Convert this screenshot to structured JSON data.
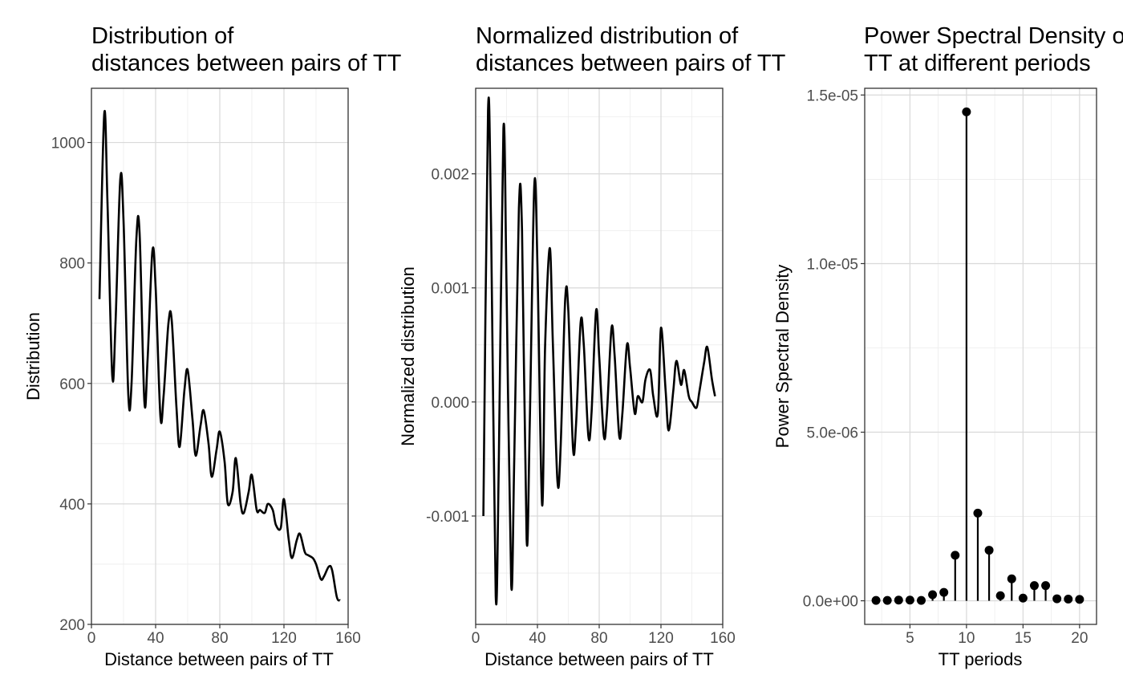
{
  "chart_data": [
    {
      "type": "line",
      "title_lines": [
        "Distribution of",
        "distances between pairs of TT"
      ],
      "xlabel": "Distance between pairs of TT",
      "ylabel": "Distribution",
      "xlim": [
        0,
        160
      ],
      "ylim": [
        200,
        1090
      ],
      "xticks": [
        0,
        40,
        80,
        120,
        160
      ],
      "xtick_labels": [
        "0",
        "40",
        "80",
        "120",
        "160"
      ],
      "yticks": [
        200,
        400,
        600,
        800,
        1000
      ],
      "ytick_labels": [
        "200",
        "400",
        "600",
        "800",
        "1000"
      ],
      "grid": true,
      "line_color": "#000000",
      "x": [
        5,
        8,
        10,
        13,
        15,
        18,
        20,
        23,
        25,
        28,
        30,
        33,
        35,
        38,
        40,
        43,
        45,
        48,
        50,
        53,
        55,
        58,
        60,
        63,
        65,
        68,
        70,
        73,
        75,
        78,
        80,
        83,
        85,
        88,
        90,
        93,
        95,
        98,
        100,
        103,
        105,
        108,
        110,
        113,
        115,
        118,
        120,
        123,
        125,
        128,
        130,
        133,
        135,
        138,
        140,
        143,
        145,
        148,
        150,
        153,
        155
      ],
      "y": [
        740,
        1048,
        900,
        612,
        700,
        940,
        870,
        580,
        600,
        840,
        850,
        570,
        640,
        820,
        760,
        545,
        580,
        700,
        706,
        560,
        495,
        590,
        622,
        540,
        480,
        530,
        555,
        500,
        445,
        490,
        520,
        470,
        400,
        420,
        476,
        400,
        385,
        420,
        448,
        390,
        390,
        385,
        400,
        390,
        365,
        360,
        408,
        340,
        310,
        340,
        350,
        320,
        315,
        310,
        300,
        275,
        280,
        296,
        290,
        245,
        240
      ]
    },
    {
      "type": "line",
      "title_lines": [
        "Normalized distribution of",
        "distances between pairs of TT"
      ],
      "xlabel": "Distance between pairs of TT",
      "ylabel": "Normalized distribution",
      "xlim": [
        0,
        160
      ],
      "ylim": [
        -0.00195,
        0.00275
      ],
      "xticks": [
        0,
        40,
        80,
        120,
        160
      ],
      "xtick_labels": [
        "0",
        "40",
        "80",
        "120",
        "160"
      ],
      "yticks": [
        -0.001,
        0.0,
        0.001,
        0.002
      ],
      "ytick_labels": [
        "-0.001",
        "0.000",
        "0.001",
        "0.002"
      ],
      "grid": true,
      "line_color": "#000000",
      "x": [
        5,
        8,
        10,
        13,
        15,
        18,
        20,
        23,
        25,
        28,
        30,
        33,
        35,
        38,
        40,
        43,
        45,
        48,
        50,
        53,
        55,
        58,
        60,
        63,
        65,
        68,
        70,
        73,
        75,
        78,
        80,
        83,
        85,
        88,
        90,
        93,
        95,
        98,
        100,
        103,
        105,
        108,
        110,
        113,
        115,
        118,
        120,
        123,
        125,
        128,
        130,
        133,
        135,
        138,
        140,
        143,
        145,
        148,
        150,
        153,
        155
      ],
      "y": [
        -0.001,
        0.00255,
        0.0015,
        -0.0017,
        -0.0005,
        0.0024,
        0.001,
        -0.0016,
        -0.0005,
        0.0017,
        0.0015,
        -0.0012,
        -0.0002,
        0.0019,
        0.0012,
        -0.0009,
        0.0005,
        0.00135,
        0.0005,
        -0.0007,
        -0.0004,
        0.0009,
        0.0008,
        -0.0004,
        -0.0002,
        0.0007,
        0.0005,
        -0.0003,
        -0.0001,
        0.0008,
        0.0004,
        -0.0003,
        -0.0001,
        0.00065,
        0.0004,
        -0.0003,
        -0.0001,
        0.0005,
        0.0003,
        -0.0001,
        5e-05,
        0.0,
        0.0002,
        0.00028,
        5e-05,
        -0.0001,
        0.00065,
        0.0001,
        -0.00025,
        0.0001,
        0.00036,
        0.00015,
        0.00028,
        5e-05,
        0.0,
        -5e-05,
        0.0001,
        0.00035,
        0.00048,
        0.0002,
        5e-05
      ]
    },
    {
      "type": "scatter",
      "style": "lollipop",
      "title_lines": [
        "Power Spectral Density of",
        "TT at different periods"
      ],
      "xlabel": "TT periods",
      "ylabel": "Power Spectral Density",
      "xlim": [
        1.0,
        21.5
      ],
      "ylim": [
        -7e-07,
        1.52e-05
      ],
      "xticks": [
        5,
        10,
        15,
        20
      ],
      "xtick_labels": [
        "5",
        "10",
        "15",
        "20"
      ],
      "yticks": [
        0.0,
        5e-06,
        1e-05,
        1.5e-05
      ],
      "ytick_labels": [
        "0.0e+00",
        "5.0e-06",
        "1.0e-05",
        "1.5e-05"
      ],
      "grid": true,
      "point_color": "#000000",
      "x": [
        2,
        3,
        4,
        5,
        6,
        7,
        8,
        9,
        10,
        11,
        12,
        13,
        14,
        15,
        16,
        17,
        18,
        19,
        20
      ],
      "y": [
        1e-08,
        1e-08,
        2e-08,
        2e-08,
        1e-08,
        1.8e-07,
        2.5e-07,
        1.35e-06,
        1.45e-05,
        2.6e-06,
        1.5e-06,
        1.5e-07,
        6.5e-07,
        8e-08,
        4.5e-07,
        4.5e-07,
        6e-08,
        5e-08,
        4e-08
      ]
    }
  ]
}
